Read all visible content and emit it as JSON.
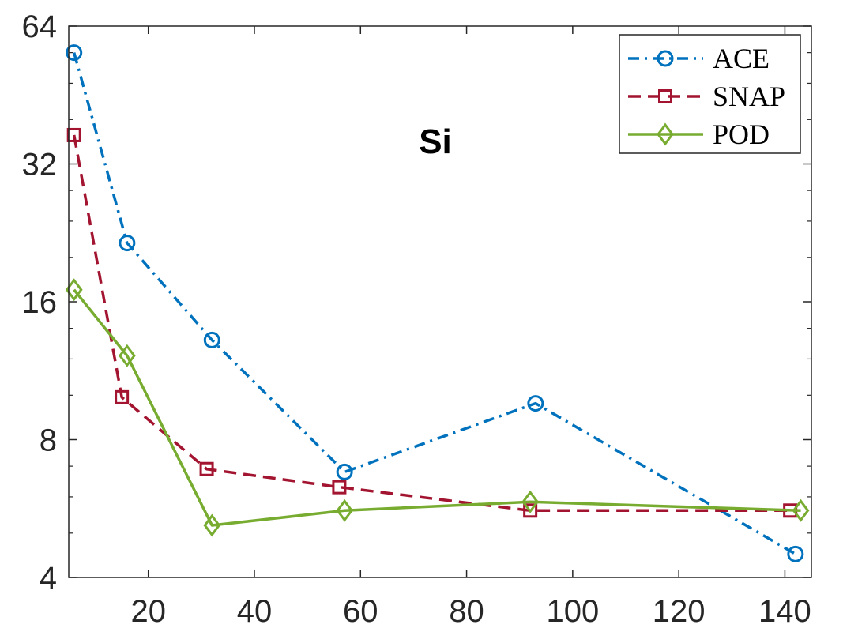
{
  "chart_data": {
    "type": "line",
    "title": "",
    "xlabel": "",
    "ylabel": "",
    "annotation": "Si",
    "xlim": [
      5,
      145
    ],
    "ylim": [
      4,
      64
    ],
    "yscale": "log2",
    "grid": false,
    "legend_position": "top-right",
    "x_ticks": [
      20,
      40,
      60,
      80,
      100,
      120,
      140
    ],
    "x_tick_labels": [
      "20",
      "40",
      "60",
      "80",
      "100",
      "120",
      "140"
    ],
    "y_ticks": [
      4,
      8,
      16,
      32,
      64
    ],
    "y_tick_labels": [
      "4",
      "8",
      "16",
      "32",
      "64"
    ],
    "series": [
      {
        "name": "ACE",
        "color": "#0072BD",
        "line_style": "dash-dot",
        "marker": "circle",
        "points": [
          [
            6,
            56
          ],
          [
            16,
            21.5
          ],
          [
            32,
            13.2
          ],
          [
            57,
            6.8
          ],
          [
            93,
            9.6
          ],
          [
            142,
            4.5
          ]
        ]
      },
      {
        "name": "SNAP",
        "color": "#A2142F",
        "line_style": "dashed",
        "marker": "square",
        "points": [
          [
            6,
            37
          ],
          [
            15,
            9.9
          ],
          [
            31,
            6.9
          ],
          [
            56,
            6.3
          ],
          [
            92,
            5.6
          ],
          [
            141,
            5.6
          ]
        ]
      },
      {
        "name": "POD",
        "color": "#77AC30",
        "line_style": "solid",
        "marker": "diamond",
        "points": [
          [
            6,
            17
          ],
          [
            16,
            12.2
          ],
          [
            32,
            5.2
          ],
          [
            57,
            5.6
          ],
          [
            92,
            5.85
          ],
          [
            143,
            5.6
          ]
        ]
      }
    ]
  }
}
